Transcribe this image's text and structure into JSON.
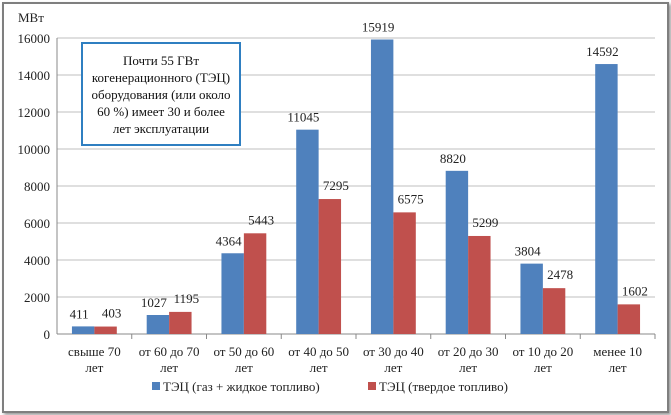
{
  "chart_data": {
    "type": "bar",
    "ylabel": "МВт",
    "ylim": [
      0,
      16000
    ],
    "yticks": [
      0,
      2000,
      4000,
      6000,
      8000,
      10000,
      12000,
      14000,
      16000
    ],
    "grid": true,
    "categories": [
      [
        "свыше 70",
        "лет"
      ],
      [
        "от 60 до 70",
        "лет"
      ],
      [
        "от 50 до 60",
        "лет"
      ],
      [
        "от 40 до 50",
        "лет"
      ],
      [
        "от 30 до 40",
        "лет"
      ],
      [
        "от 20 до 30",
        "лет"
      ],
      [
        "от 10 до 20",
        "лет"
      ],
      [
        "менее 10",
        "лет"
      ]
    ],
    "series": [
      {
        "name": "ТЭЦ (газ + жидкое топливо)",
        "color": "#4f81bd",
        "values": [
          411,
          1027,
          4364,
          11045,
          15919,
          8820,
          3804,
          14592
        ]
      },
      {
        "name": "ТЭЦ (твердое топливо)",
        "color": "#c0504d",
        "values": [
          403,
          1195,
          5443,
          7295,
          6575,
          5299,
          2478,
          1602
        ]
      }
    ],
    "legend": "bottom",
    "annotation": "Почти 55 ГВт когенерационного (ТЭЦ) оборудования (или около 60 %) имеет 30 и более лет эксплуатации"
  }
}
